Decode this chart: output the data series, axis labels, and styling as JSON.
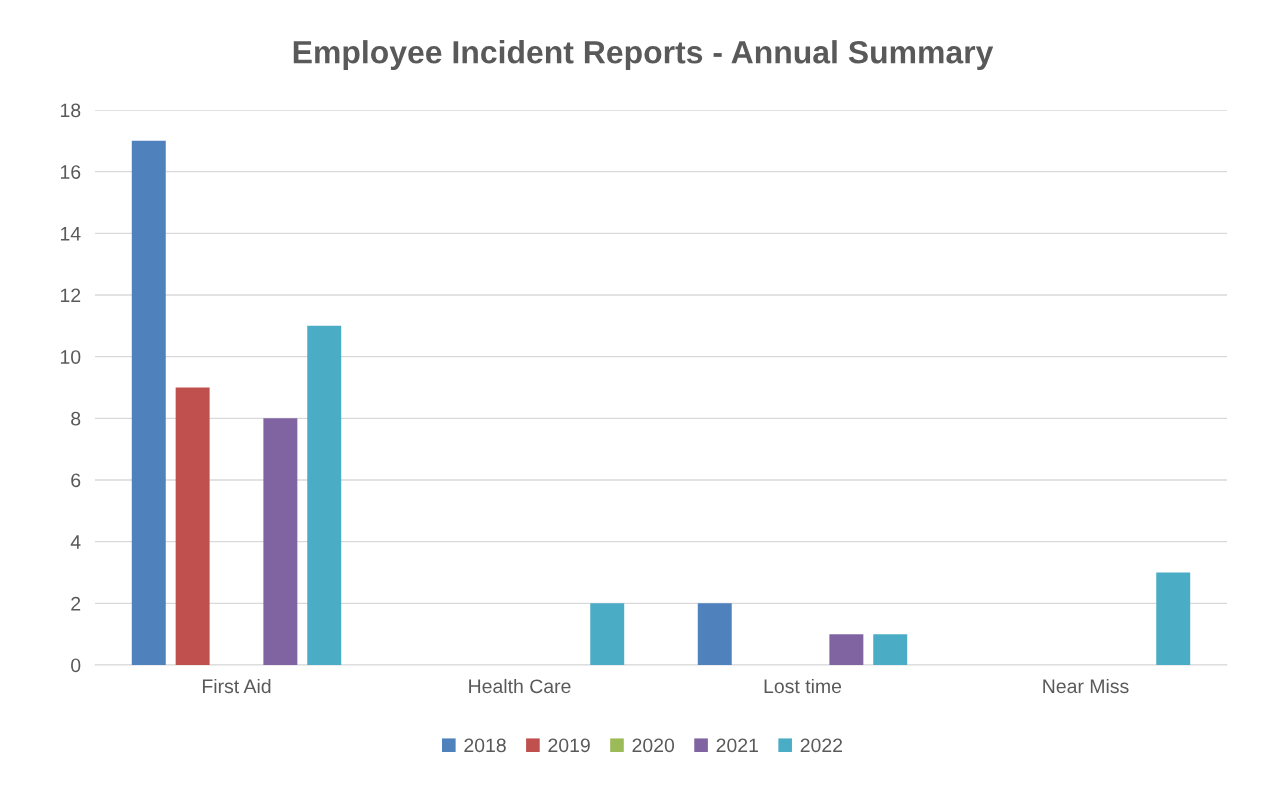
{
  "chart_data": {
    "type": "bar",
    "title": "Employee Incident Reports - Annual Summary",
    "categories": [
      "First Aid",
      "Health Care",
      "Lost time",
      "Near Miss"
    ],
    "series": [
      {
        "name": "2018",
        "color": "#4f81bd",
        "values": [
          17,
          0,
          2,
          0
        ]
      },
      {
        "name": "2019",
        "color": "#c0504d",
        "values": [
          9,
          0,
          0,
          0
        ]
      },
      {
        "name": "2020",
        "color": "#9bbb59",
        "values": [
          0,
          0,
          0,
          0
        ]
      },
      {
        "name": "2021",
        "color": "#8064a2",
        "values": [
          8,
          0,
          1,
          0
        ]
      },
      {
        "name": "2022",
        "color": "#4bacc6",
        "values": [
          11,
          2,
          1,
          3
        ]
      }
    ],
    "ylim": [
      0,
      18
    ],
    "yticks": [
      0,
      2,
      4,
      6,
      8,
      10,
      12,
      14,
      16,
      18
    ],
    "grid": "y",
    "legend": "bottom"
  }
}
